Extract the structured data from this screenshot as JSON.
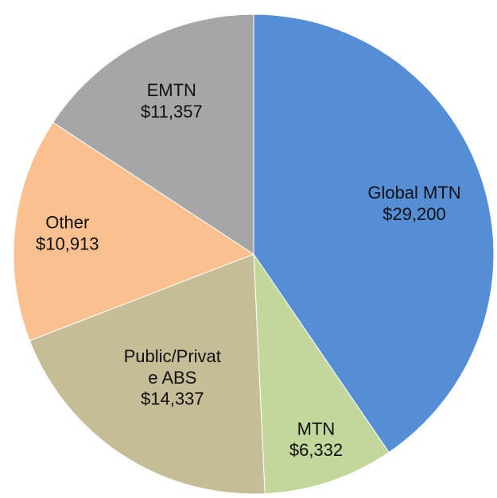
{
  "chart_data": {
    "type": "pie",
    "categories": [
      "Global MTN",
      "MTN",
      "Public/Private ABS",
      "Other",
      "EMTN"
    ],
    "values": [
      29200,
      6332,
      14337,
      10913,
      11357
    ],
    "value_labels": [
      "$29,200",
      "$6,332",
      "$14,337",
      "$10,913",
      "$11,357"
    ],
    "colors": [
      "#558ed5",
      "#c3d69b",
      "#c4bd97",
      "#fac090",
      "#a6a6a6"
    ]
  }
}
